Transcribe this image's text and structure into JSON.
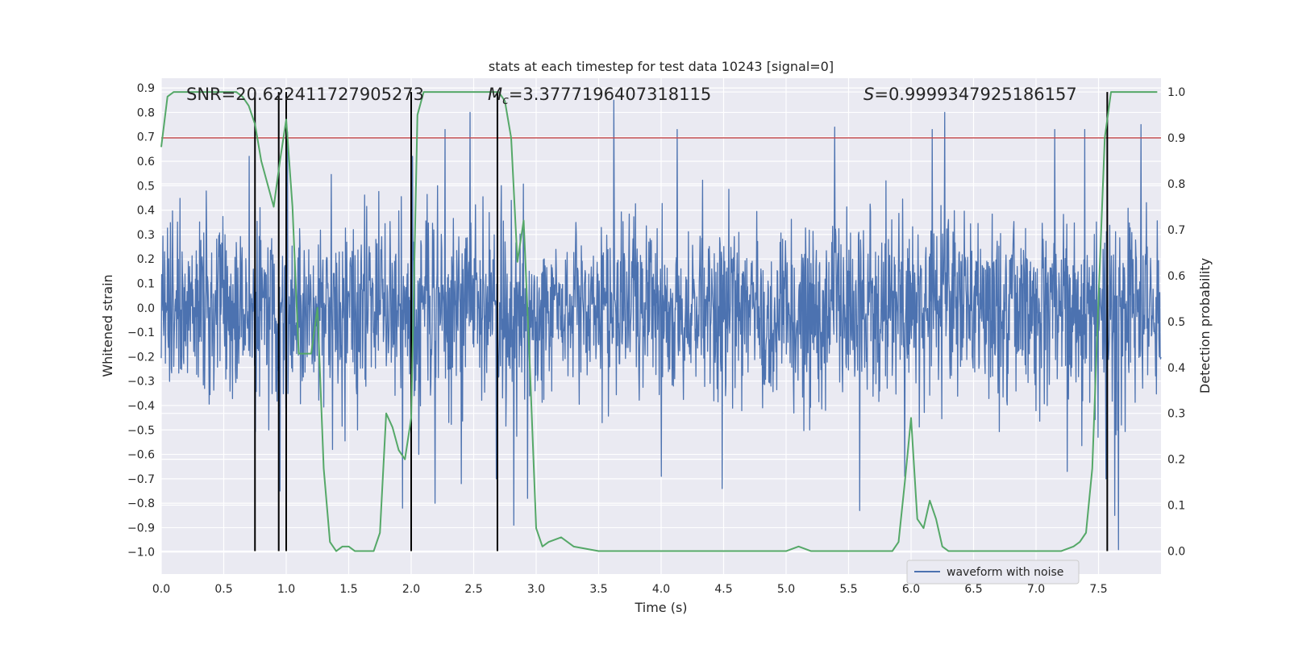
{
  "chart_data": {
    "type": "line",
    "title": "stats at each timestep for test data 10243 [signal=0]",
    "xlabel": "Time (s)",
    "ylabel_left": "Whitened strain",
    "ylabel_right": "Detection probability",
    "xlim": [
      0.0,
      8.0
    ],
    "ylim_left": [
      -1.09,
      0.94
    ],
    "ylim_right": [
      -0.05,
      1.03
    ],
    "x_ticks": [
      "0.0",
      "0.5",
      "1.0",
      "1.5",
      "2.0",
      "2.5",
      "3.0",
      "3.5",
      "4.0",
      "4.5",
      "5.0",
      "5.5",
      "6.0",
      "6.5",
      "7.0",
      "7.5"
    ],
    "x_tick_values": [
      0.0,
      0.5,
      1.0,
      1.5,
      2.0,
      2.5,
      3.0,
      3.5,
      4.0,
      4.5,
      5.0,
      5.5,
      6.0,
      6.5,
      7.0,
      7.5
    ],
    "y_left_ticks": [
      "0.9",
      "0.8",
      "0.7",
      "0.6",
      "0.5",
      "0.4",
      "0.3",
      "0.2",
      "0.1",
      "0.0",
      "−0.1",
      "−0.2",
      "−0.3",
      "−0.4",
      "−0.5",
      "−0.6",
      "−0.7",
      "−0.8",
      "−0.9",
      "−1.0"
    ],
    "y_left_tick_values": [
      0.9,
      0.8,
      0.7,
      0.6,
      0.5,
      0.4,
      0.3,
      0.2,
      0.1,
      0.0,
      -0.1,
      -0.2,
      -0.3,
      -0.4,
      -0.5,
      -0.6,
      -0.7,
      -0.8,
      -0.9,
      -1.0
    ],
    "y_right_ticks": [
      "0.0",
      "0.1",
      "0.2",
      "0.3",
      "0.4",
      "0.5",
      "0.6",
      "0.7",
      "0.8",
      "0.9",
      "1.0"
    ],
    "y_right_tick_values": [
      0.0,
      0.1,
      0.2,
      0.3,
      0.4,
      0.5,
      0.6,
      0.7,
      0.8,
      0.9,
      1.0
    ],
    "annotations": {
      "snr": "SNR=20.622411727905273",
      "mc_symbol": "M",
      "mc_sub": "c",
      "mc_value": "=3.3777196407318115",
      "s_symbol": "S",
      "s_value": "=0.9999347925186157"
    },
    "legend": {
      "label": "waveform with noise",
      "position": "lower-right"
    },
    "threshold_probability": 0.9,
    "threshold_color": "#c44e52",
    "vertical_markers": [
      0.75,
      0.94,
      1.0,
      2.0,
      2.69,
      7.57
    ],
    "vertical_marker_range": [
      0.0,
      1.0
    ],
    "noise_series": {
      "name": "waveform with noise",
      "color": "#4c72b0",
      "samples": 2400,
      "seed": 10243,
      "typical_amplitude": 0.3,
      "spikes": [
        [
          0.79,
          0.41
        ],
        [
          0.86,
          -0.5
        ],
        [
          0.95,
          -0.75
        ],
        [
          1.01,
          0.72
        ],
        [
          1.37,
          -0.58
        ],
        [
          1.57,
          -0.5
        ],
        [
          1.93,
          -0.82
        ],
        [
          2.01,
          0.62
        ],
        [
          2.06,
          -0.6
        ],
        [
          2.19,
          -0.8
        ],
        [
          2.27,
          0.73
        ],
        [
          2.4,
          -0.72
        ],
        [
          2.47,
          0.8
        ],
        [
          2.68,
          -0.7
        ],
        [
          2.72,
          0.5
        ],
        [
          2.82,
          -0.89
        ],
        [
          2.93,
          -0.78
        ],
        [
          3.62,
          0.85
        ],
        [
          4.13,
          0.73
        ],
        [
          4.0,
          -0.69
        ],
        [
          4.49,
          -0.74
        ],
        [
          5.19,
          -0.5
        ],
        [
          5.39,
          0.74
        ],
        [
          5.59,
          -0.83
        ],
        [
          5.95,
          -0.69
        ],
        [
          6.17,
          0.73
        ],
        [
          6.27,
          0.8
        ],
        [
          7.15,
          0.73
        ],
        [
          7.25,
          -0.67
        ],
        [
          7.39,
          0.73
        ],
        [
          7.56,
          -0.7
        ],
        [
          7.63,
          -0.85
        ],
        [
          7.66,
          -0.99
        ],
        [
          7.84,
          0.75
        ]
      ]
    },
    "probability_series": {
      "name": "detection probability",
      "color": "#55a868",
      "x": [
        0.0,
        0.05,
        0.1,
        0.2,
        0.3,
        0.4,
        0.5,
        0.6,
        0.65,
        0.7,
        0.75,
        0.8,
        0.85,
        0.9,
        0.95,
        1.0,
        1.05,
        1.1,
        1.15,
        1.2,
        1.25,
        1.3,
        1.35,
        1.4,
        1.45,
        1.5,
        1.55,
        1.6,
        1.7,
        1.75,
        1.8,
        1.85,
        1.9,
        1.95,
        2.0,
        2.05,
        2.1,
        2.15,
        2.2,
        2.3,
        2.4,
        2.5,
        2.6,
        2.7,
        2.75,
        2.8,
        2.85,
        2.9,
        2.95,
        3.0,
        3.05,
        3.1,
        3.2,
        3.3,
        3.5,
        3.7,
        4.0,
        4.5,
        5.0,
        5.1,
        5.2,
        5.3,
        5.4,
        5.6,
        5.85,
        5.9,
        5.95,
        6.0,
        6.05,
        6.1,
        6.15,
        6.2,
        6.25,
        6.3,
        6.4,
        6.6,
        7.0,
        7.2,
        7.3,
        7.35,
        7.4,
        7.45,
        7.5,
        7.55,
        7.6,
        7.65,
        7.7,
        7.8,
        7.9,
        7.97
      ],
      "y": [
        0.88,
        0.99,
        1.0,
        1.0,
        1.0,
        1.0,
        1.0,
        1.0,
        0.99,
        0.97,
        0.93,
        0.85,
        0.8,
        0.75,
        0.85,
        0.94,
        0.75,
        0.43,
        0.43,
        0.43,
        0.53,
        0.18,
        0.02,
        0.0,
        0.01,
        0.01,
        0.0,
        0.0,
        0.0,
        0.04,
        0.3,
        0.27,
        0.22,
        0.2,
        0.29,
        0.95,
        1.0,
        1.0,
        1.0,
        1.0,
        1.0,
        1.0,
        1.0,
        1.0,
        0.98,
        0.9,
        0.63,
        0.72,
        0.4,
        0.05,
        0.01,
        0.02,
        0.03,
        0.01,
        0.0,
        0.0,
        0.0,
        0.0,
        0.0,
        0.01,
        0.0,
        0.0,
        0.0,
        0.0,
        0.0,
        0.02,
        0.15,
        0.29,
        0.07,
        0.05,
        0.11,
        0.07,
        0.01,
        0.0,
        0.0,
        0.0,
        0.0,
        0.0,
        0.01,
        0.02,
        0.04,
        0.18,
        0.55,
        0.9,
        1.0,
        1.0,
        1.0,
        1.0,
        1.0,
        1.0
      ]
    },
    "marker_color": "#000000"
  }
}
